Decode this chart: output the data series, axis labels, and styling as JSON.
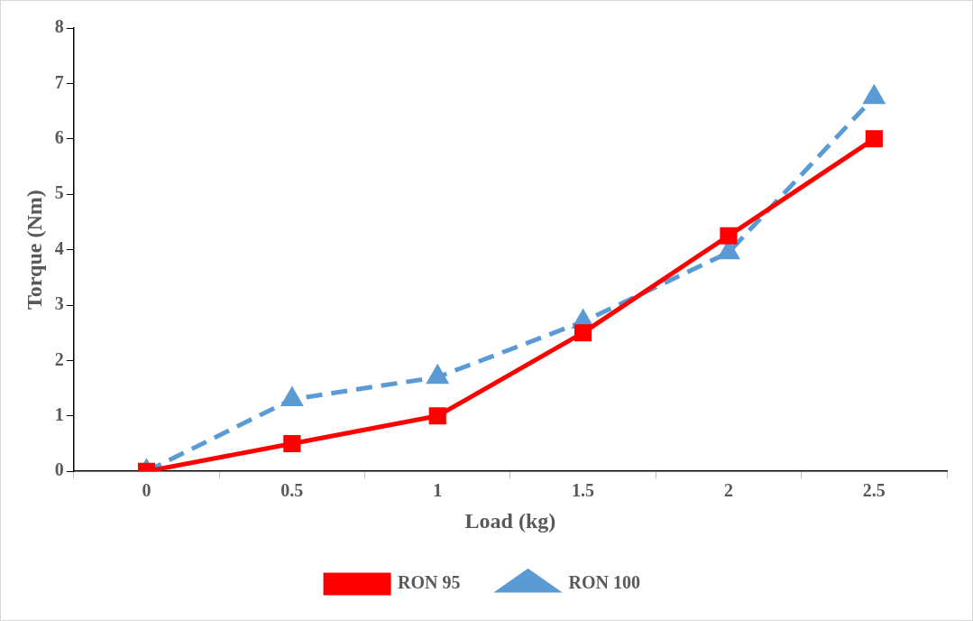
{
  "chart_data": {
    "type": "line",
    "xlabel": "Load (kg)",
    "ylabel": "Torque (Nm)",
    "categories": [
      "0",
      "0.5",
      "1",
      "1.5",
      "2",
      "2.5"
    ],
    "series": [
      {
        "name": "RON 95",
        "color": "#ff0000",
        "marker": "square",
        "line_style": "solid",
        "values": [
          0,
          0.5,
          1,
          2.5,
          4.25,
          6
        ]
      },
      {
        "name": "RON 100",
        "color": "#5b9bd5",
        "marker": "triangle",
        "line_style": "dashed",
        "values": [
          0,
          1.3,
          1.7,
          2.7,
          3.95,
          6.75
        ]
      }
    ],
    "ylim": [
      0,
      8
    ],
    "yticks": [
      0,
      1,
      2,
      3,
      4,
      5,
      6,
      7,
      8
    ],
    "grid": false,
    "legend": "bottom"
  }
}
